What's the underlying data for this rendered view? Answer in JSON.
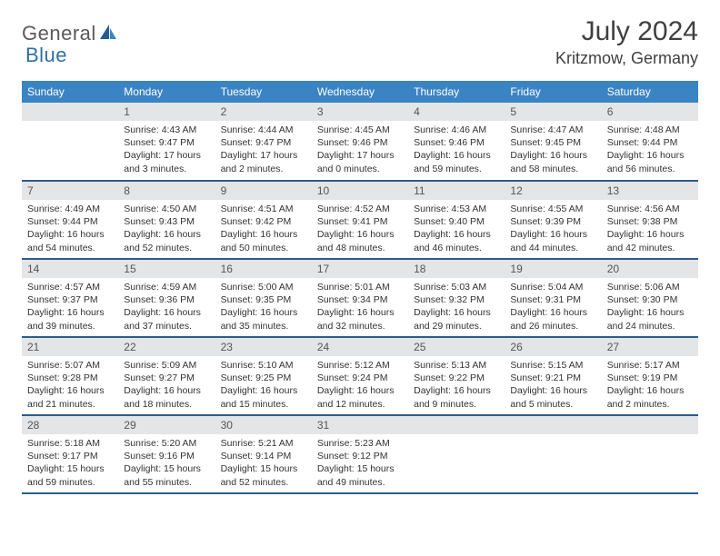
{
  "brand": {
    "part1": "General",
    "part2": "Blue"
  },
  "title": "July 2024",
  "location": "Kritzmow, Germany",
  "colors": {
    "header_bg": "#3b84c4",
    "header_text": "#ffffff",
    "daynum_bg": "#e3e5e7",
    "week_divider": "#2a5d8a",
    "body_text": "#333333",
    "title_text": "#404040",
    "logo_gray": "#5a5a5a",
    "logo_blue": "#2f6fa7"
  },
  "day_names": [
    "Sunday",
    "Monday",
    "Tuesday",
    "Wednesday",
    "Thursday",
    "Friday",
    "Saturday"
  ],
  "weeks": [
    [
      {
        "n": "",
        "sr": "",
        "ss": "",
        "dl": ""
      },
      {
        "n": "1",
        "sr": "Sunrise: 4:43 AM",
        "ss": "Sunset: 9:47 PM",
        "dl": "Daylight: 17 hours and 3 minutes."
      },
      {
        "n": "2",
        "sr": "Sunrise: 4:44 AM",
        "ss": "Sunset: 9:47 PM",
        "dl": "Daylight: 17 hours and 2 minutes."
      },
      {
        "n": "3",
        "sr": "Sunrise: 4:45 AM",
        "ss": "Sunset: 9:46 PM",
        "dl": "Daylight: 17 hours and 0 minutes."
      },
      {
        "n": "4",
        "sr": "Sunrise: 4:46 AM",
        "ss": "Sunset: 9:46 PM",
        "dl": "Daylight: 16 hours and 59 minutes."
      },
      {
        "n": "5",
        "sr": "Sunrise: 4:47 AM",
        "ss": "Sunset: 9:45 PM",
        "dl": "Daylight: 16 hours and 58 minutes."
      },
      {
        "n": "6",
        "sr": "Sunrise: 4:48 AM",
        "ss": "Sunset: 9:44 PM",
        "dl": "Daylight: 16 hours and 56 minutes."
      }
    ],
    [
      {
        "n": "7",
        "sr": "Sunrise: 4:49 AM",
        "ss": "Sunset: 9:44 PM",
        "dl": "Daylight: 16 hours and 54 minutes."
      },
      {
        "n": "8",
        "sr": "Sunrise: 4:50 AM",
        "ss": "Sunset: 9:43 PM",
        "dl": "Daylight: 16 hours and 52 minutes."
      },
      {
        "n": "9",
        "sr": "Sunrise: 4:51 AM",
        "ss": "Sunset: 9:42 PM",
        "dl": "Daylight: 16 hours and 50 minutes."
      },
      {
        "n": "10",
        "sr": "Sunrise: 4:52 AM",
        "ss": "Sunset: 9:41 PM",
        "dl": "Daylight: 16 hours and 48 minutes."
      },
      {
        "n": "11",
        "sr": "Sunrise: 4:53 AM",
        "ss": "Sunset: 9:40 PM",
        "dl": "Daylight: 16 hours and 46 minutes."
      },
      {
        "n": "12",
        "sr": "Sunrise: 4:55 AM",
        "ss": "Sunset: 9:39 PM",
        "dl": "Daylight: 16 hours and 44 minutes."
      },
      {
        "n": "13",
        "sr": "Sunrise: 4:56 AM",
        "ss": "Sunset: 9:38 PM",
        "dl": "Daylight: 16 hours and 42 minutes."
      }
    ],
    [
      {
        "n": "14",
        "sr": "Sunrise: 4:57 AM",
        "ss": "Sunset: 9:37 PM",
        "dl": "Daylight: 16 hours and 39 minutes."
      },
      {
        "n": "15",
        "sr": "Sunrise: 4:59 AM",
        "ss": "Sunset: 9:36 PM",
        "dl": "Daylight: 16 hours and 37 minutes."
      },
      {
        "n": "16",
        "sr": "Sunrise: 5:00 AM",
        "ss": "Sunset: 9:35 PM",
        "dl": "Daylight: 16 hours and 35 minutes."
      },
      {
        "n": "17",
        "sr": "Sunrise: 5:01 AM",
        "ss": "Sunset: 9:34 PM",
        "dl": "Daylight: 16 hours and 32 minutes."
      },
      {
        "n": "18",
        "sr": "Sunrise: 5:03 AM",
        "ss": "Sunset: 9:32 PM",
        "dl": "Daylight: 16 hours and 29 minutes."
      },
      {
        "n": "19",
        "sr": "Sunrise: 5:04 AM",
        "ss": "Sunset: 9:31 PM",
        "dl": "Daylight: 16 hours and 26 minutes."
      },
      {
        "n": "20",
        "sr": "Sunrise: 5:06 AM",
        "ss": "Sunset: 9:30 PM",
        "dl": "Daylight: 16 hours and 24 minutes."
      }
    ],
    [
      {
        "n": "21",
        "sr": "Sunrise: 5:07 AM",
        "ss": "Sunset: 9:28 PM",
        "dl": "Daylight: 16 hours and 21 minutes."
      },
      {
        "n": "22",
        "sr": "Sunrise: 5:09 AM",
        "ss": "Sunset: 9:27 PM",
        "dl": "Daylight: 16 hours and 18 minutes."
      },
      {
        "n": "23",
        "sr": "Sunrise: 5:10 AM",
        "ss": "Sunset: 9:25 PM",
        "dl": "Daylight: 16 hours and 15 minutes."
      },
      {
        "n": "24",
        "sr": "Sunrise: 5:12 AM",
        "ss": "Sunset: 9:24 PM",
        "dl": "Daylight: 16 hours and 12 minutes."
      },
      {
        "n": "25",
        "sr": "Sunrise: 5:13 AM",
        "ss": "Sunset: 9:22 PM",
        "dl": "Daylight: 16 hours and 9 minutes."
      },
      {
        "n": "26",
        "sr": "Sunrise: 5:15 AM",
        "ss": "Sunset: 9:21 PM",
        "dl": "Daylight: 16 hours and 5 minutes."
      },
      {
        "n": "27",
        "sr": "Sunrise: 5:17 AM",
        "ss": "Sunset: 9:19 PM",
        "dl": "Daylight: 16 hours and 2 minutes."
      }
    ],
    [
      {
        "n": "28",
        "sr": "Sunrise: 5:18 AM",
        "ss": "Sunset: 9:17 PM",
        "dl": "Daylight: 15 hours and 59 minutes."
      },
      {
        "n": "29",
        "sr": "Sunrise: 5:20 AM",
        "ss": "Sunset: 9:16 PM",
        "dl": "Daylight: 15 hours and 55 minutes."
      },
      {
        "n": "30",
        "sr": "Sunrise: 5:21 AM",
        "ss": "Sunset: 9:14 PM",
        "dl": "Daylight: 15 hours and 52 minutes."
      },
      {
        "n": "31",
        "sr": "Sunrise: 5:23 AM",
        "ss": "Sunset: 9:12 PM",
        "dl": "Daylight: 15 hours and 49 minutes."
      },
      {
        "n": "",
        "sr": "",
        "ss": "",
        "dl": ""
      },
      {
        "n": "",
        "sr": "",
        "ss": "",
        "dl": ""
      },
      {
        "n": "",
        "sr": "",
        "ss": "",
        "dl": ""
      }
    ]
  ]
}
